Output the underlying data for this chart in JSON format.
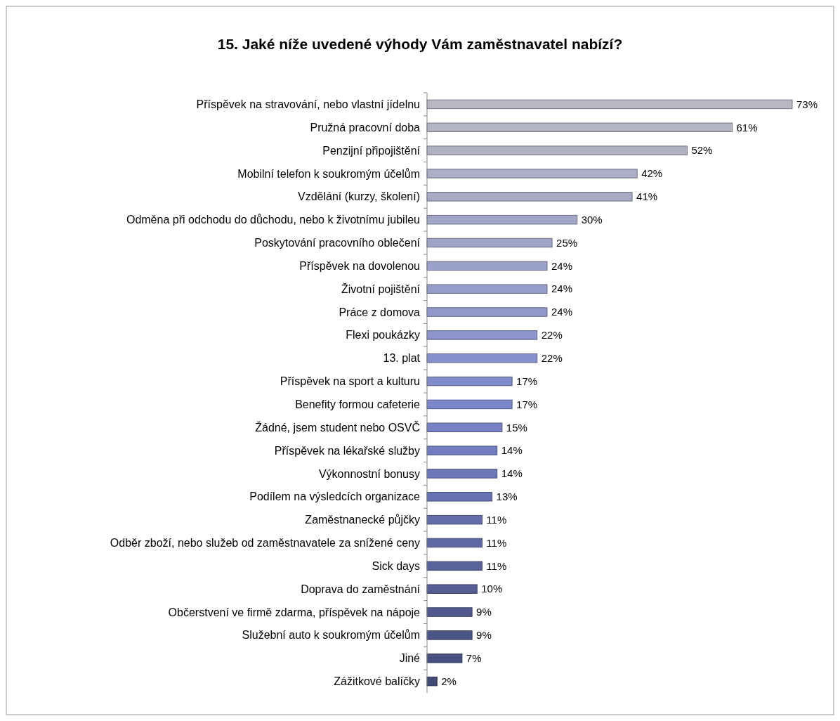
{
  "chart_data": {
    "type": "bar",
    "orientation": "horizontal",
    "title": "15. Jaké níže uvedené výhody Vám zaměstnavatel nabízí?",
    "categories": [
      "Příspěvek na stravování, nebo vlastní jídelnu",
      "Pružná pracovní doba",
      "Penzijní připojištění",
      "Mobilní telefon k soukromým účelům",
      "Vzdělání (kurzy, školení)",
      "Odměna při odchodu do důchodu, nebo k životnímu jubileu",
      "Poskytování pracovního oblečení",
      "Příspěvek na dovolenou",
      "Životní pojištění",
      "Práce z domova",
      "Flexi poukázky",
      "13. plat",
      "Příspěvek na sport a kulturu",
      "Benefity formou cafeterie",
      "Žádné, jsem student nebo OSVČ",
      "Příspěvek na lékařské služby",
      "Výkonnostní bonusy",
      "Podílem na výsledcích organizace",
      "Zaměstnanecké půjčky",
      "Odběr zboží, nebo služeb od zaměstnavatele za snížené ceny",
      "Sick days",
      "Doprava do zaměstnání",
      "Občerstvení ve firmě zdarma, příspěvek na nápoje",
      "Služební auto k soukromým účelům",
      "Jiné",
      "Zážitkové balíčky"
    ],
    "values": [
      73,
      61,
      52,
      42,
      41,
      30,
      25,
      24,
      24,
      24,
      22,
      22,
      17,
      17,
      15,
      14,
      14,
      13,
      11,
      11,
      11,
      10,
      9,
      9,
      7,
      2
    ],
    "value_labels": [
      "73%",
      "61%",
      "52%",
      "42%",
      "41%",
      "30%",
      "25%",
      "24%",
      "24%",
      "24%",
      "22%",
      "22%",
      "17%",
      "17%",
      "15%",
      "14%",
      "14%",
      "13%",
      "11%",
      "11%",
      "11%",
      "10%",
      "9%",
      "9%",
      "7%",
      "2%"
    ],
    "colors": [
      "#b8b8c4",
      "#b4b5c4",
      "#b0b2c4",
      "#abaec6",
      "#a7abc6",
      "#a2a7c8",
      "#9ea4c8",
      "#99a0c9",
      "#959dca",
      "#9099cb",
      "#8b95cb",
      "#8791cc",
      "#7f8bcb",
      "#7b87c8",
      "#7682c3",
      "#717dbe",
      "#6c78b8",
      "#6773b2",
      "#636eab",
      "#5e69a4",
      "#59649d",
      "#555f96",
      "#505a8e",
      "#4c5587",
      "#475080",
      "#424a78"
    ]
  }
}
